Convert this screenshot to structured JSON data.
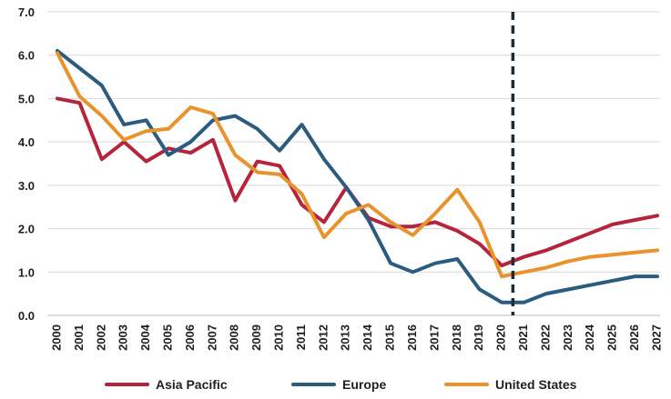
{
  "chart_data": {
    "type": "line",
    "x": [
      "2000",
      "2001",
      "2002",
      "2003",
      "2004",
      "2005",
      "2006",
      "2007",
      "2008",
      "2009",
      "2010",
      "2011",
      "2012",
      "2013",
      "2014",
      "2015",
      "2016",
      "2017",
      "2018",
      "2019",
      "2020",
      "2021",
      "2022",
      "2023",
      "2024",
      "2025",
      "2026",
      "2027"
    ],
    "ylim": [
      0,
      7
    ],
    "yticks": [
      "0.0",
      "1.0",
      "2.0",
      "3.0",
      "4.0",
      "5.0",
      "6.0",
      "7.0"
    ],
    "grid": true,
    "legend_position": "bottom",
    "forecast_divider_after": "2020",
    "series": [
      {
        "name": "Asia Pacific",
        "color": "#b5243b",
        "values": [
          5.0,
          4.9,
          3.6,
          4.0,
          3.55,
          3.85,
          3.75,
          4.05,
          2.65,
          3.55,
          3.45,
          2.55,
          2.15,
          2.95,
          2.25,
          2.05,
          2.05,
          2.15,
          1.95,
          1.65,
          1.15,
          1.35,
          1.5,
          1.7,
          1.9,
          2.1,
          2.2,
          2.3
        ]
      },
      {
        "name": "Europe",
        "color": "#2b5b7e",
        "values": [
          6.1,
          5.7,
          5.3,
          4.4,
          4.5,
          3.7,
          4.0,
          4.5,
          4.6,
          4.3,
          3.8,
          4.4,
          3.6,
          2.95,
          2.2,
          1.2,
          1.0,
          1.2,
          1.3,
          0.6,
          0.3,
          0.3,
          0.5,
          0.6,
          0.7,
          0.8,
          0.9,
          0.9
        ]
      },
      {
        "name": "United States",
        "color": "#e8932c",
        "values": [
          6.05,
          5.05,
          4.6,
          4.05,
          4.25,
          4.3,
          4.8,
          4.65,
          3.7,
          3.3,
          3.25,
          2.8,
          1.8,
          2.35,
          2.55,
          2.15,
          1.85,
          2.35,
          2.9,
          2.15,
          0.9,
          1.0,
          1.1,
          1.25,
          1.35,
          1.4,
          1.45,
          1.5
        ]
      }
    ]
  }
}
